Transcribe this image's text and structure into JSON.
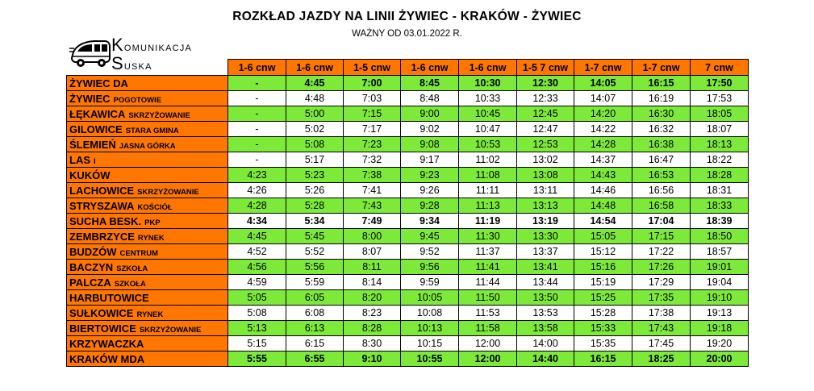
{
  "title": "ROZKŁAD JAZDY NA LINII ŻYWIEC - KRAKÓW - ŻYWIEC",
  "subtitle": "WAŻNY OD 03.01.2022 R.",
  "logo": {
    "line1_initial": "K",
    "line1_rest": "omunikacja",
    "line2_initial": "S",
    "line2_rest": "uska",
    "icon": "bus-icon"
  },
  "colors": {
    "header": "#ff7700",
    "stop": "#ff7700",
    "green_row": "#7dea3a",
    "white_row": "#ffffff"
  },
  "columns": [
    "1-6 cnw",
    "1-6 cnw",
    "1-5 cnw",
    "1-6 cnw",
    "1-6 cnw",
    "1-5 7 cnw",
    "1-7 cnw",
    "1-7 cnw",
    "7 cnw"
  ],
  "rows": [
    {
      "stop": "ŻYWIEC DA",
      "sub": "",
      "style": "green",
      "bold": true,
      "times": [
        "-",
        "4:45",
        "7:00",
        "8:45",
        "10:30",
        "12:30",
        "14:05",
        "16:15",
        "17:50"
      ]
    },
    {
      "stop": "ŻYWIEC",
      "sub": "POGOTOWIE",
      "style": "white",
      "bold": false,
      "times": [
        "-",
        "4:48",
        "7:03",
        "8:48",
        "10:33",
        "12:33",
        "14:07",
        "16:19",
        "17:53"
      ]
    },
    {
      "stop": "ŁĘKAWICA",
      "sub": "SKRZYŻOWANIE",
      "style": "green",
      "bold": false,
      "times": [
        "-",
        "5:00",
        "7:15",
        "9:00",
        "10:45",
        "12:45",
        "14:20",
        "16:30",
        "18:05"
      ]
    },
    {
      "stop": "GILOWICE",
      "sub": "STARA GMINA",
      "style": "white",
      "bold": false,
      "times": [
        "-",
        "5:02",
        "7:17",
        "9:02",
        "10:47",
        "12:47",
        "14:22",
        "16:32",
        "18:07"
      ]
    },
    {
      "stop": "ŚLEMIEŃ",
      "sub": "JASNA GÓRKA",
      "style": "green",
      "bold": false,
      "times": [
        "-",
        "5:08",
        "7:23",
        "9:08",
        "10:53",
        "12:53",
        "14:28",
        "16:38",
        "18:13"
      ]
    },
    {
      "stop": "LAS",
      "sub": "I",
      "style": "white",
      "bold": false,
      "times": [
        "-",
        "5:17",
        "7:32",
        "9:17",
        "11:02",
        "13:02",
        "14:37",
        "16:47",
        "18:22"
      ]
    },
    {
      "stop": "KUKÓW",
      "sub": "",
      "style": "green",
      "bold": false,
      "times": [
        "4:23",
        "5:23",
        "7:38",
        "9:23",
        "11:08",
        "13:08",
        "14:43",
        "16:53",
        "18:28"
      ]
    },
    {
      "stop": "LACHOWICE",
      "sub": "SKRZYŻOWANIE",
      "style": "white",
      "bold": false,
      "times": [
        "4:26",
        "5:26",
        "7:41",
        "9:26",
        "11:11",
        "13:11",
        "14:46",
        "16:56",
        "18:31"
      ]
    },
    {
      "stop": "STRYSZAWA",
      "sub": "KOŚCIÓŁ",
      "style": "green",
      "bold": false,
      "times": [
        "4:28",
        "5:28",
        "7:43",
        "9:28",
        "11:13",
        "13:13",
        "14:48",
        "16:58",
        "18:33"
      ]
    },
    {
      "stop": "SUCHA BESK.",
      "sub": "PKP",
      "style": "white",
      "bold": true,
      "times": [
        "4:34",
        "5:34",
        "7:49",
        "9:34",
        "11:19",
        "13:19",
        "14:54",
        "17:04",
        "18:39"
      ]
    },
    {
      "stop": "ZEMBRZYCE",
      "sub": "RYNEK",
      "style": "green",
      "bold": false,
      "times": [
        "4:45",
        "5:45",
        "8:00",
        "9:45",
        "11:30",
        "13:30",
        "15:05",
        "17:15",
        "18:50"
      ]
    },
    {
      "stop": "BUDZÓW",
      "sub": "CENTRUM",
      "style": "white",
      "bold": false,
      "times": [
        "4:52",
        "5:52",
        "8:07",
        "9:52",
        "11:37",
        "13:37",
        "15:12",
        "17:22",
        "18:57"
      ]
    },
    {
      "stop": "BACZYN",
      "sub": "SZKOŁA",
      "style": "green",
      "bold": false,
      "times": [
        "4:56",
        "5:56",
        "8:11",
        "9:56",
        "11:41",
        "13:41",
        "15:16",
        "17:26",
        "19:01"
      ]
    },
    {
      "stop": "PALCZA",
      "sub": "SZKOŁA",
      "style": "white",
      "bold": false,
      "times": [
        "4:59",
        "5:59",
        "8:14",
        "9:59",
        "11:44",
        "13:44",
        "15:19",
        "17:29",
        "19:04"
      ]
    },
    {
      "stop": "HARBUTOWICE",
      "sub": "",
      "style": "green",
      "bold": false,
      "times": [
        "5:05",
        "6:05",
        "8:20",
        "10:05",
        "11:50",
        "13:50",
        "15:25",
        "17:35",
        "19:10"
      ]
    },
    {
      "stop": "SUŁKOWICE",
      "sub": "RYNEK",
      "style": "white",
      "bold": false,
      "times": [
        "5:08",
        "6:08",
        "8:23",
        "10:08",
        "11:53",
        "13:53",
        "15:28",
        "17:38",
        "19:13"
      ]
    },
    {
      "stop": "BIERTOWICE",
      "sub": "SKRZYŻOWANIE",
      "style": "green",
      "bold": false,
      "times": [
        "5:13",
        "6:13",
        "8:28",
        "10:13",
        "11:58",
        "13:58",
        "15:33",
        "17:43",
        "19:18"
      ]
    },
    {
      "stop": "KRZYWACZKA",
      "sub": "",
      "style": "white",
      "bold": false,
      "times": [
        "5:15",
        "6:15",
        "8:30",
        "10:15",
        "12:00",
        "14:00",
        "15:35",
        "17:45",
        "19:20"
      ]
    },
    {
      "stop": "KRAKÓW MDA",
      "sub": "",
      "style": "green",
      "bold": true,
      "times": [
        "5:55",
        "6:55",
        "9:10",
        "10:55",
        "12:00",
        "14:40",
        "16:15",
        "18:25",
        "20:00"
      ]
    }
  ]
}
